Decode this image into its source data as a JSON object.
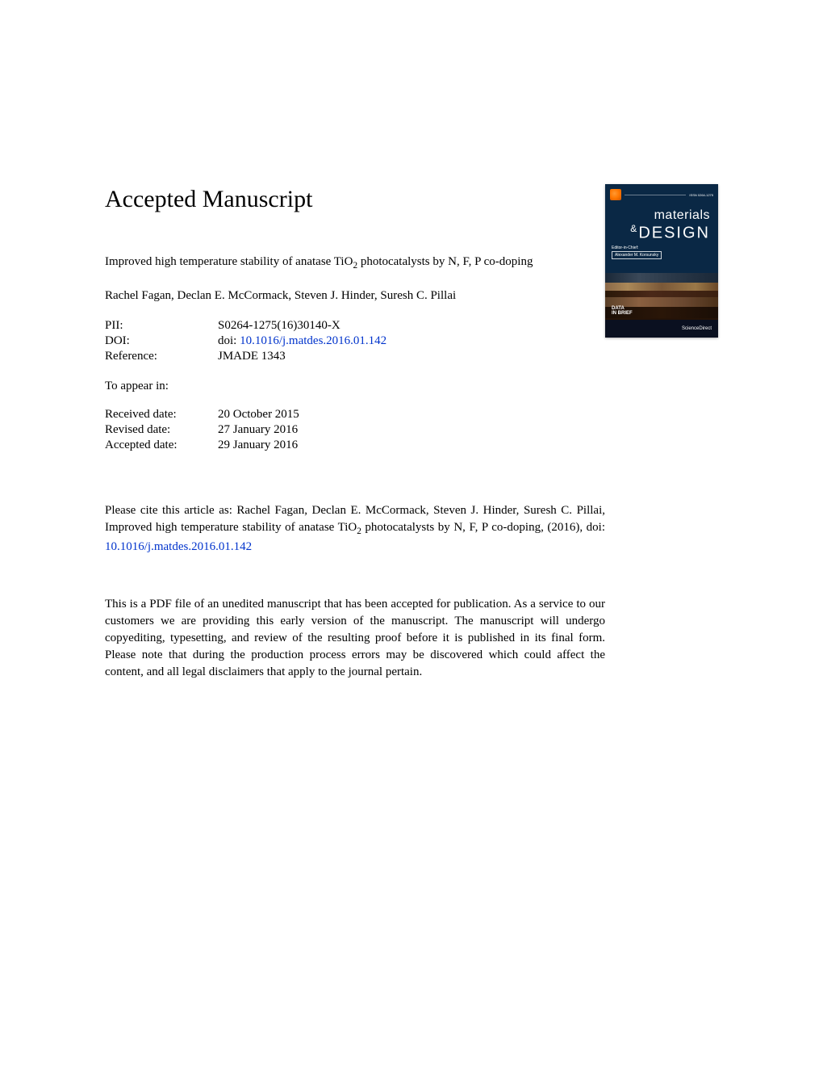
{
  "heading": "Accepted Manuscript",
  "title_pre": "Improved high temperature stability of anatase TiO",
  "title_sub": "2",
  "title_post": " photocatalysts by N, F, P co-doping",
  "authors": "Rachel Fagan, Declan E. McCormack, Steven J. Hinder, Suresh C. Pillai",
  "meta": {
    "pii_label": "PII:",
    "pii": "S0264-1275(16)30140-X",
    "doi_label": "DOI:",
    "doi_prefix": "doi: ",
    "doi_link": "10.1016/j.matdes.2016.01.142",
    "ref_label": "Reference:",
    "ref": "JMADE 1343"
  },
  "appear": "To appear in:",
  "dates": {
    "received_label": "Received date:",
    "received": "20 October 2015",
    "revised_label": "Revised date:",
    "revised": "27 January 2016",
    "accepted_label": "Accepted date:",
    "accepted": "29 January 2016"
  },
  "citation_pre": "Please cite this article as: Rachel Fagan, Declan E. McCormack, Steven J. Hinder, Suresh C. Pillai, Improved high temperature stability of anatase TiO",
  "citation_sub": "2",
  "citation_mid": " photocatalysts by N, F, P co-doping, (2016), doi: ",
  "citation_link": "10.1016/j.matdes.2016.01.142",
  "disclaimer": "This is a PDF file of an unedited manuscript that has been accepted for publication. As a service to our customers we are providing this early version of the manuscript. The manuscript will undergo copyediting, typesetting, and review of the resulting proof before it is published in its final form. Please note that during the production process errors may be discovered which could affect the content, and all legal disclaimers that apply to the journal pertain.",
  "cover": {
    "issn": "ISSN 0264-1275",
    "title_line1": "materials",
    "title_line2_amp": "&",
    "title_line2": "DESIGN",
    "editor_label": "Editor-in-Chief:",
    "editor_name": "Alexander M. Korsunsky",
    "data_label": "DATA",
    "data_sub": "IN BRIEF",
    "sciencedirect": "ScienceDirect"
  },
  "colors": {
    "text": "#000000",
    "link": "#0033cc",
    "cover_dark": "#0a2845",
    "cover_earth": "#5a3020",
    "background": "#ffffff"
  }
}
